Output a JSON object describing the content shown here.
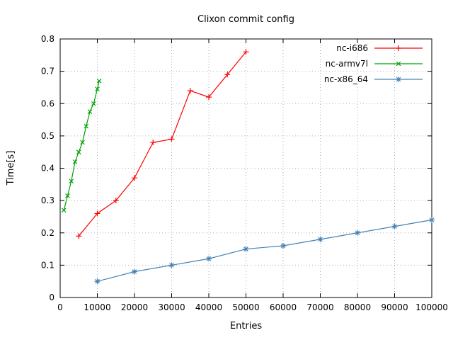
{
  "chart_data": {
    "type": "line",
    "title": "Clixon commit config",
    "xlabel": "Entries",
    "ylabel": "Time[s]",
    "xlim": [
      0,
      100000
    ],
    "ylim": [
      0,
      0.8
    ],
    "xticks": [
      0,
      10000,
      20000,
      30000,
      40000,
      50000,
      60000,
      70000,
      80000,
      90000,
      100000
    ],
    "xtick_labels": [
      "0",
      "10000",
      "20000",
      "30000",
      "40000",
      "50000",
      "60000",
      "70000",
      "80000",
      "90000",
      "100000"
    ],
    "yticks": [
      0,
      0.1,
      0.2,
      0.3,
      0.4,
      0.5,
      0.6,
      0.7,
      0.8
    ],
    "ytick_labels": [
      "0",
      "0.1",
      "0.2",
      "0.3",
      "0.4",
      "0.5",
      "0.6",
      "0.7",
      "0.8"
    ],
    "grid": true,
    "grid_color": "#b0b0b0",
    "border_color": "#000000",
    "legend_position": "top-right",
    "series": [
      {
        "name": "nc-i686",
        "color": "#ff0000",
        "marker": "plus",
        "x": [
          5000,
          10000,
          15000,
          20000,
          25000,
          30000,
          35000,
          40000,
          45000,
          50000
        ],
        "y": [
          0.19,
          0.26,
          0.3,
          0.37,
          0.48,
          0.49,
          0.64,
          0.62,
          0.69,
          0.76
        ]
      },
      {
        "name": "nc-armv7l",
        "color": "#00a000",
        "marker": "x",
        "x": [
          1000,
          2000,
          3000,
          4000,
          5000,
          6000,
          7000,
          8000,
          9000,
          10000,
          10500
        ],
        "y": [
          0.27,
          0.315,
          0.36,
          0.42,
          0.45,
          0.48,
          0.53,
          0.575,
          0.6,
          0.645,
          0.67
        ]
      },
      {
        "name": "nc-x86_64",
        "color": "#4682b4",
        "marker": "star",
        "x": [
          10000,
          20000,
          30000,
          40000,
          50000,
          60000,
          70000,
          80000,
          90000,
          100000
        ],
        "y": [
          0.05,
          0.08,
          0.1,
          0.12,
          0.15,
          0.16,
          0.18,
          0.2,
          0.22,
          0.24
        ]
      }
    ]
  }
}
